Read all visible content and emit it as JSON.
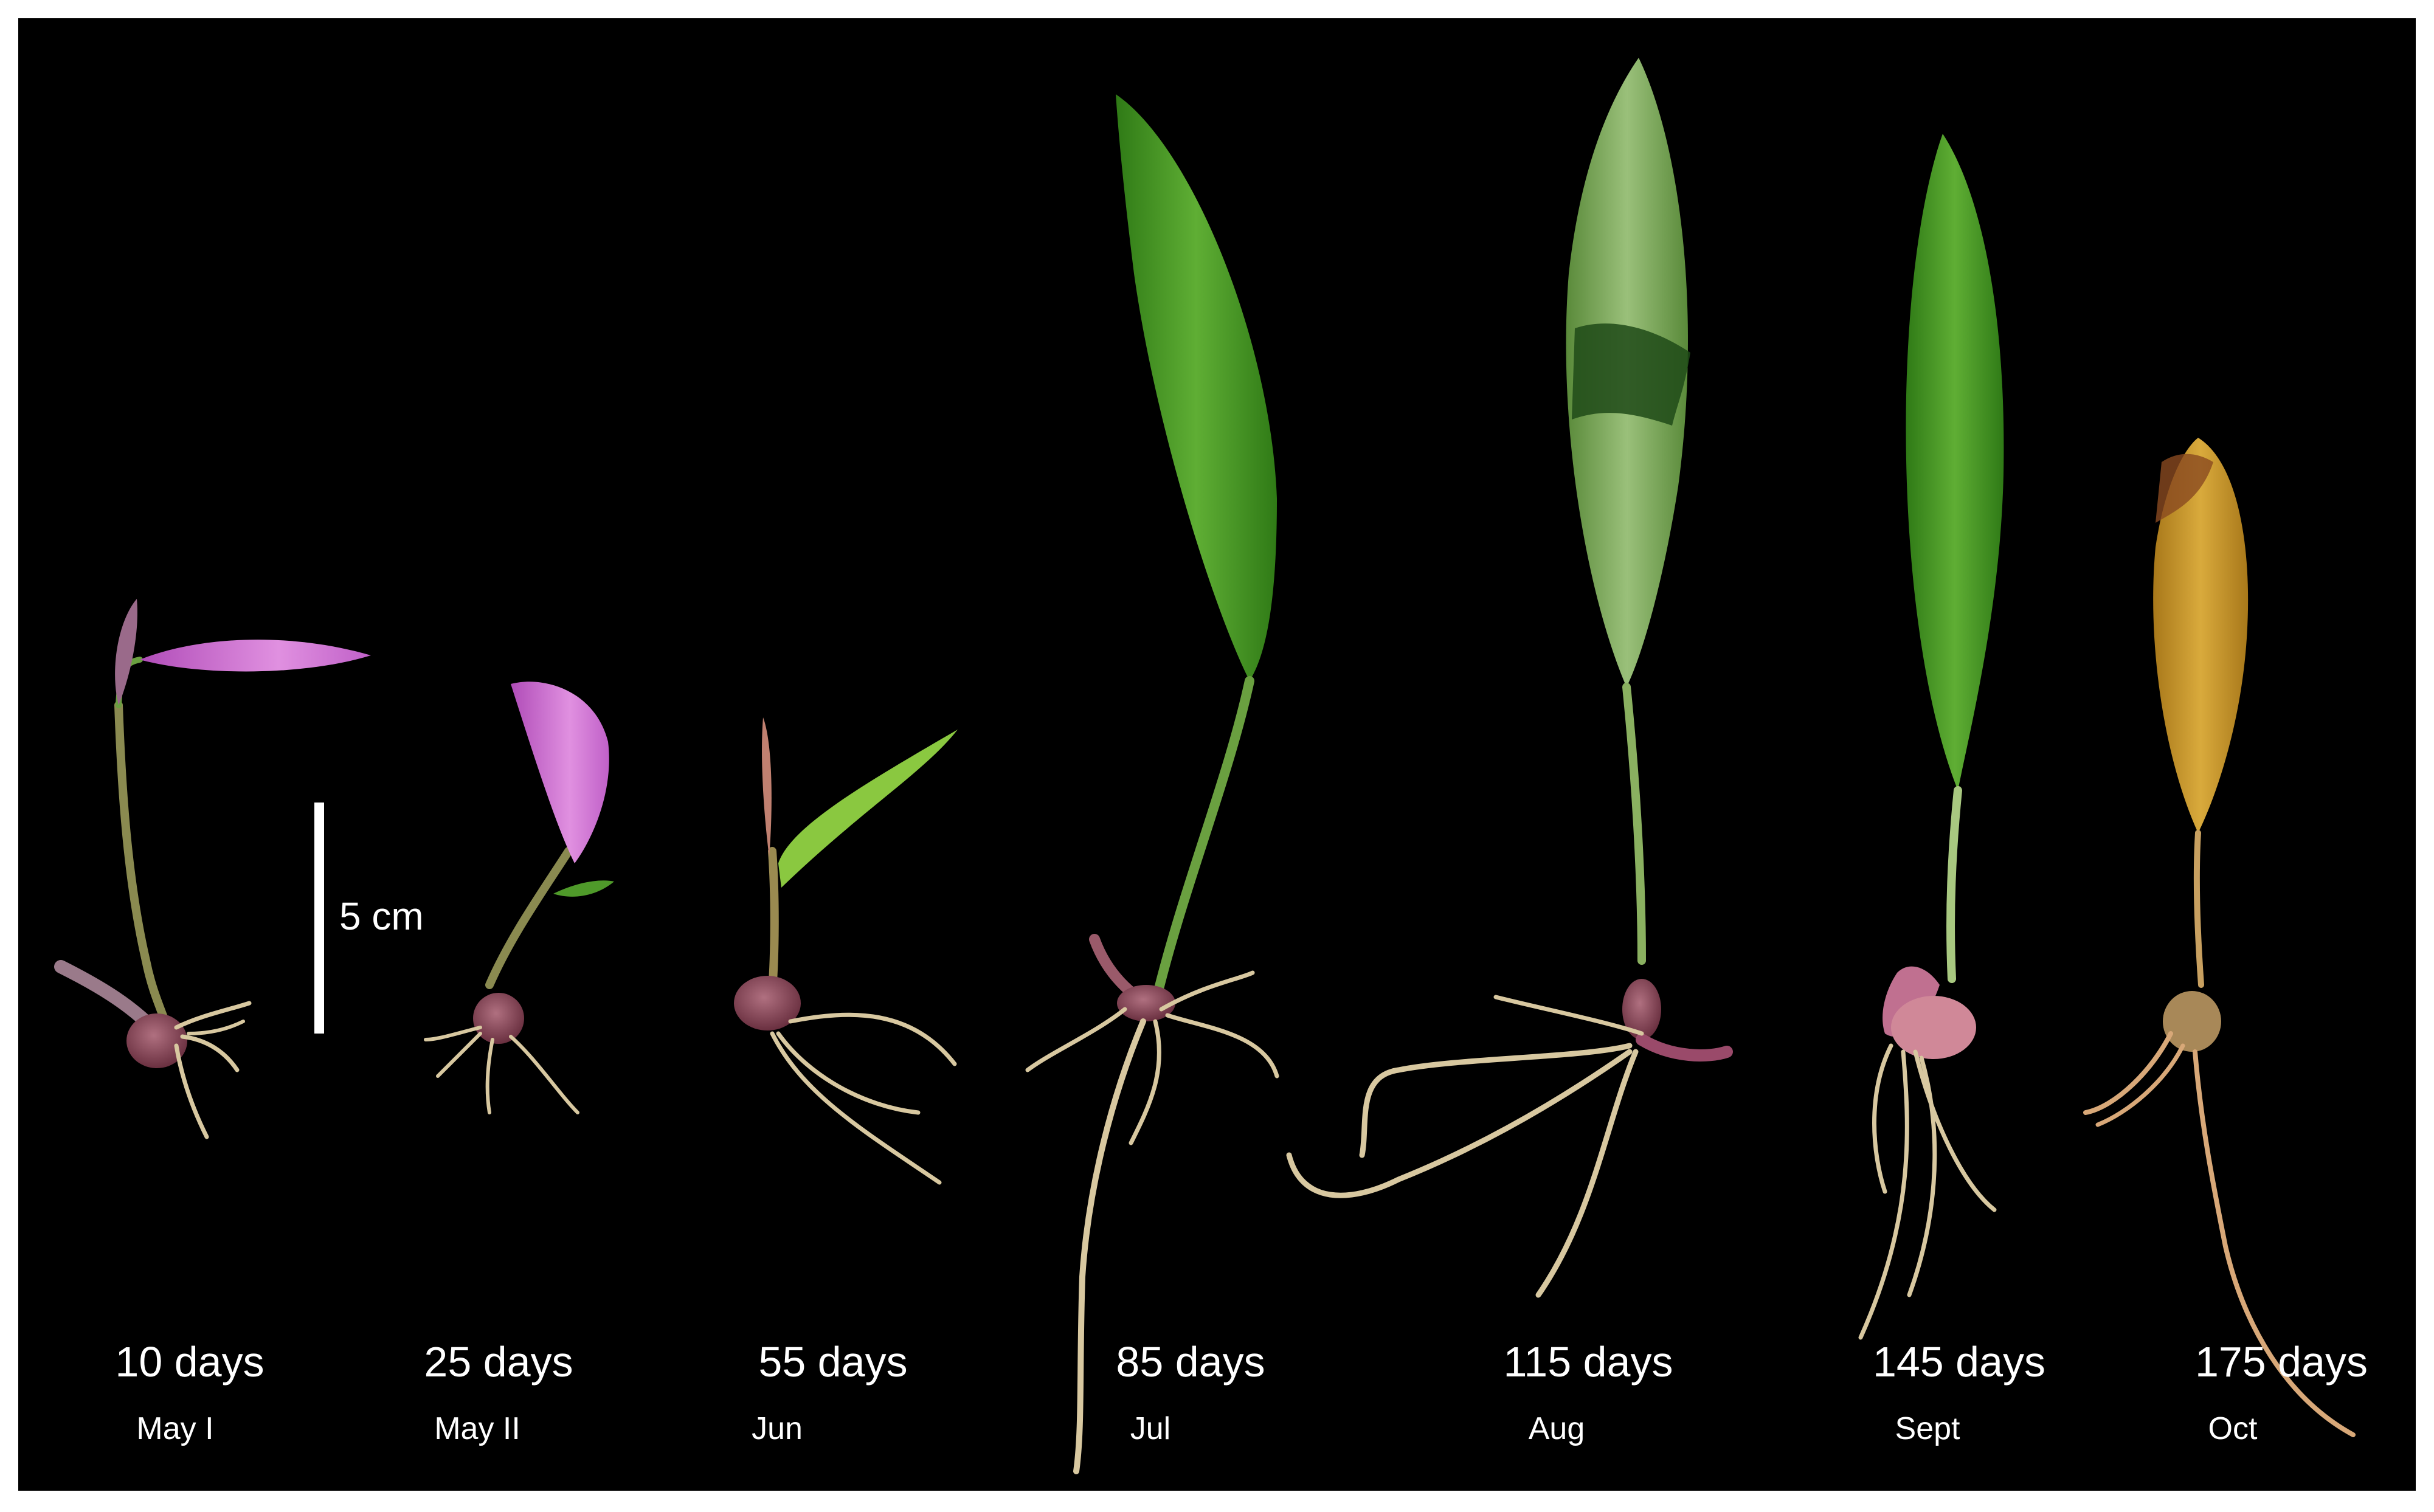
{
  "scale_bar": {
    "label": "5 cm"
  },
  "stages": [
    {
      "days": "10 days",
      "month": "May I"
    },
    {
      "days": "25 days",
      "month": "May II"
    },
    {
      "days": "55 days",
      "month": "Jun"
    },
    {
      "days": "85 days",
      "month": "Jul"
    },
    {
      "days": "115 days",
      "month": "Aug"
    },
    {
      "days": "145 days",
      "month": "Sept"
    },
    {
      "days": "175 days",
      "month": "Oct"
    }
  ],
  "colors": {
    "background": "#000000",
    "flower": "#c860c8",
    "leaf_green": "#4f9a2a",
    "leaf_yellow": "#c89a2c",
    "root": "#d8c8a0",
    "corm": "#8a4a5a"
  }
}
